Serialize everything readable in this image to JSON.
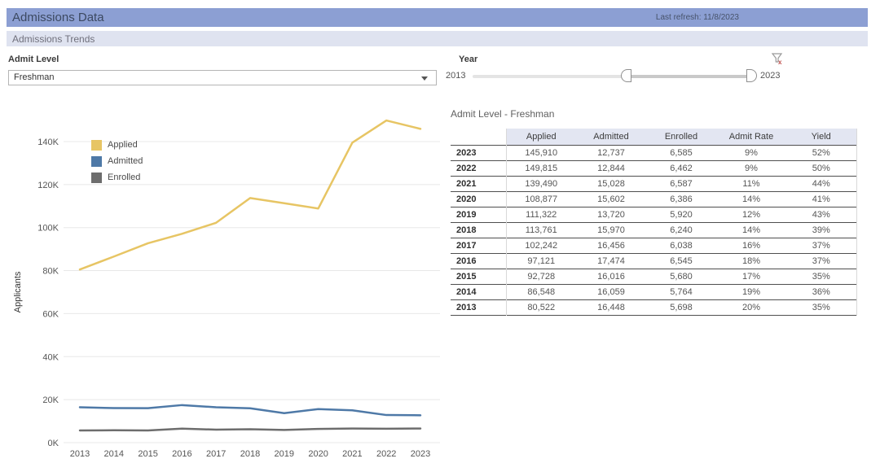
{
  "header": {
    "title": "Admissions Data",
    "last_refresh": "Last refresh: 11/8/2023"
  },
  "subheader": {
    "title": "Admissions Trends"
  },
  "filters": {
    "admit_level": {
      "label": "Admit Level",
      "value": "Freshman"
    },
    "year": {
      "label": "Year",
      "min_label": "2013",
      "max_label": "2023",
      "clear_icon": "funnel-x-icon"
    }
  },
  "table": {
    "title": "Admit Level - Freshman",
    "columns": [
      "Applied",
      "Admitted",
      "Enrolled",
      "Admit Rate",
      "Yield"
    ],
    "rows": [
      {
        "year": "2023",
        "values": [
          "145,910",
          "12,737",
          "6,585",
          "9%",
          "52%"
        ]
      },
      {
        "year": "2022",
        "values": [
          "149,815",
          "12,844",
          "6,462",
          "9%",
          "50%"
        ]
      },
      {
        "year": "2021",
        "values": [
          "139,490",
          "15,028",
          "6,587",
          "11%",
          "44%"
        ]
      },
      {
        "year": "2020",
        "values": [
          "108,877",
          "15,602",
          "6,386",
          "14%",
          "41%"
        ]
      },
      {
        "year": "2019",
        "values": [
          "111,322",
          "13,720",
          "5,920",
          "12%",
          "43%"
        ]
      },
      {
        "year": "2018",
        "values": [
          "113,761",
          "15,970",
          "6,240",
          "14%",
          "39%"
        ]
      },
      {
        "year": "2017",
        "values": [
          "102,242",
          "16,456",
          "6,038",
          "16%",
          "37%"
        ]
      },
      {
        "year": "2016",
        "values": [
          "97,121",
          "17,474",
          "6,545",
          "18%",
          "37%"
        ]
      },
      {
        "year": "2015",
        "values": [
          "92,728",
          "16,016",
          "5,680",
          "17%",
          "35%"
        ]
      },
      {
        "year": "2014",
        "values": [
          "86,548",
          "16,059",
          "5,764",
          "19%",
          "36%"
        ]
      },
      {
        "year": "2013",
        "values": [
          "80,522",
          "16,448",
          "5,698",
          "20%",
          "35%"
        ]
      }
    ]
  },
  "chart_data": {
    "type": "line",
    "x": [
      2013,
      2014,
      2015,
      2016,
      2017,
      2018,
      2019,
      2020,
      2021,
      2022,
      2023
    ],
    "series": [
      {
        "name": "Applied",
        "color": "#e7c564",
        "values": [
          80522,
          86548,
          92728,
          97121,
          102242,
          113761,
          111322,
          108877,
          139490,
          149815,
          145910
        ]
      },
      {
        "name": "Admitted",
        "color": "#4e79a7",
        "values": [
          16448,
          16059,
          16016,
          17474,
          16456,
          15970,
          13720,
          15602,
          15028,
          12844,
          12737
        ]
      },
      {
        "name": "Enrolled",
        "color": "#6d6d6d",
        "values": [
          5698,
          5764,
          5680,
          6545,
          6038,
          6240,
          5920,
          6386,
          6587,
          6462,
          6585
        ]
      }
    ],
    "ylabel": "Applicants",
    "xlabel": "",
    "ylim": [
      0,
      150000
    ],
    "ytick_labels": [
      "0K",
      "20K",
      "40K",
      "60K",
      "80K",
      "100K",
      "120K",
      "140K"
    ],
    "ytick_step": 20000,
    "grid": true,
    "legend_position": "top-left"
  },
  "colors": {
    "header_bg": "#8c9fd3",
    "subheader_bg": "#dfe3f0",
    "table_header_bg": "#e3e6f2",
    "gridline": "#e8e8e8",
    "clear_filter_red": "#c0504d"
  }
}
